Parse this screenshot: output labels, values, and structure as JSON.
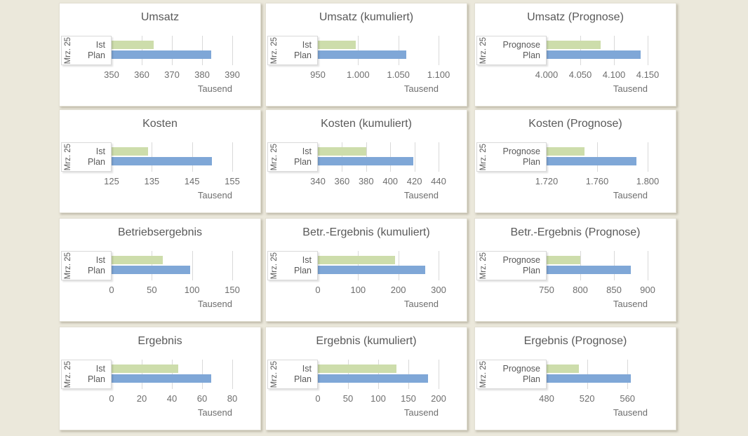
{
  "page": {
    "background_color": "#ebe8db",
    "card_background": "#ffffff"
  },
  "colors": {
    "actual_bar": "#cdddab",
    "plan_bar": "#7fa7d7",
    "title_text": "#595959",
    "axis_text": "#6e6e6e",
    "gridline": "#d9d9d9"
  },
  "chart_data": [
    {
      "type": "bar",
      "orientation": "horizontal",
      "title": "Umsatz",
      "period": "Mrz. 25",
      "categories": [
        "Ist",
        "Plan"
      ],
      "values": [
        364,
        383
      ],
      "unit": "Tausend",
      "legend": "none",
      "grid": true,
      "axis": {
        "min": 350,
        "max": 390,
        "ticks": [
          350,
          360,
          370,
          380,
          390
        ],
        "tick_labels": [
          "350",
          "360",
          "370",
          "380",
          "390"
        ]
      }
    },
    {
      "type": "bar",
      "orientation": "horizontal",
      "title": "Umsatz (kumuliert)",
      "period": "Mrz. 25",
      "categories": [
        "Ist",
        "Plan"
      ],
      "values": [
        997,
        1060
      ],
      "unit": "Tausend",
      "legend": "none",
      "grid": true,
      "axis": {
        "min": 950,
        "max": 1100,
        "ticks": [
          950,
          1000,
          1050,
          1100
        ],
        "tick_labels": [
          "950",
          "1.000",
          "1.050",
          "1.100"
        ]
      }
    },
    {
      "type": "bar",
      "orientation": "horizontal",
      "title": "Umsatz (Prognose)",
      "period": "Mrz. 25",
      "categories": [
        "Prognose",
        "Plan"
      ],
      "values": [
        4080,
        4140
      ],
      "unit": "Tausend",
      "legend": "none",
      "grid": true,
      "axis": {
        "min": 4000,
        "max": 4150,
        "ticks": [
          4000,
          4050,
          4100,
          4150
        ],
        "tick_labels": [
          "4.000",
          "4.050",
          "4.100",
          "4.150"
        ]
      }
    },
    {
      "type": "bar",
      "orientation": "horizontal",
      "title": "Kosten",
      "period": "Mrz. 25",
      "categories": [
        "Ist",
        "Plan"
      ],
      "values": [
        134,
        150
      ],
      "unit": "Tausend",
      "legend": "none",
      "grid": true,
      "axis": {
        "min": 125,
        "max": 155,
        "ticks": [
          125,
          135,
          145,
          155
        ],
        "tick_labels": [
          "125",
          "135",
          "145",
          "155"
        ]
      }
    },
    {
      "type": "bar",
      "orientation": "horizontal",
      "title": "Kosten (kumuliert)",
      "period": "Mrz. 25",
      "categories": [
        "Ist",
        "Plan"
      ],
      "values": [
        380,
        419
      ],
      "unit": "Tausend",
      "legend": "none",
      "grid": true,
      "axis": {
        "min": 340,
        "max": 440,
        "ticks": [
          340,
          360,
          380,
          400,
          420,
          440
        ],
        "tick_labels": [
          "340",
          "360",
          "380",
          "400",
          "420",
          "440"
        ]
      }
    },
    {
      "type": "bar",
      "orientation": "horizontal",
      "title": "Kosten (Prognose)",
      "period": "Mrz. 25",
      "categories": [
        "Prognose",
        "Plan"
      ],
      "values": [
        1750,
        1791
      ],
      "unit": "Tausend",
      "legend": "none",
      "grid": true,
      "axis": {
        "min": 1720,
        "max": 1800,
        "ticks": [
          1720,
          1760,
          1800
        ],
        "tick_labels": [
          "1.720",
          "1.760",
          "1.800"
        ]
      }
    },
    {
      "type": "bar",
      "orientation": "horizontal",
      "title": "Betriebsergebnis",
      "period": "Mrz. 25",
      "categories": [
        "Ist",
        "Plan"
      ],
      "values": [
        64,
        98
      ],
      "unit": "Tausend",
      "legend": "none",
      "grid": true,
      "axis": {
        "min": 0,
        "max": 150,
        "ticks": [
          0,
          50,
          100,
          150
        ],
        "tick_labels": [
          "0",
          "50",
          "100",
          "150"
        ]
      }
    },
    {
      "type": "bar",
      "orientation": "horizontal",
      "title": "Betr.-Ergebnis (kumuliert)",
      "period": "Mrz. 25",
      "categories": [
        "Ist",
        "Plan"
      ],
      "values": [
        191,
        267
      ],
      "unit": "Tausend",
      "legend": "none",
      "grid": true,
      "axis": {
        "min": 0,
        "max": 300,
        "ticks": [
          0,
          100,
          200,
          300
        ],
        "tick_labels": [
          "0",
          "100",
          "200",
          "300"
        ]
      }
    },
    {
      "type": "bar",
      "orientation": "horizontal",
      "title": "Betr.-Ergebnis (Prognose)",
      "period": "Mrz. 25",
      "categories": [
        "Prognose",
        "Plan"
      ],
      "values": [
        800,
        875
      ],
      "unit": "Tausend",
      "legend": "none",
      "grid": true,
      "axis": {
        "min": 750,
        "max": 900,
        "ticks": [
          750,
          800,
          850,
          900
        ],
        "tick_labels": [
          "750",
          "800",
          "850",
          "900"
        ]
      }
    },
    {
      "type": "bar",
      "orientation": "horizontal",
      "title": "Ergebnis",
      "period": "Mrz. 25",
      "categories": [
        "Ist",
        "Plan"
      ],
      "values": [
        44,
        66
      ],
      "unit": "Tausend",
      "legend": "none",
      "grid": true,
      "axis": {
        "min": 0,
        "max": 80,
        "ticks": [
          0,
          20,
          40,
          60,
          80
        ],
        "tick_labels": [
          "0",
          "20",
          "40",
          "60",
          "80"
        ]
      }
    },
    {
      "type": "bar",
      "orientation": "horizontal",
      "title": "Ergebnis (kumuliert)",
      "period": "Mrz. 25",
      "categories": [
        "Ist",
        "Plan"
      ],
      "values": [
        130,
        182
      ],
      "unit": "Tausend",
      "legend": "none",
      "grid": true,
      "axis": {
        "min": 0,
        "max": 200,
        "ticks": [
          0,
          50,
          100,
          150,
          200
        ],
        "tick_labels": [
          "0",
          "50",
          "100",
          "150",
          "200"
        ]
      }
    },
    {
      "type": "bar",
      "orientation": "horizontal",
      "title": "Ergebnis (Prognose)",
      "period": "Mrz. 25",
      "categories": [
        "Prognose",
        "Plan"
      ],
      "values": [
        512,
        563
      ],
      "unit": "Tausend",
      "legend": "none",
      "grid": true,
      "axis": {
        "min": 480,
        "max": 580,
        "ticks": [
          480,
          520,
          560
        ],
        "tick_labels": [
          "480",
          "520",
          "560"
        ]
      }
    }
  ]
}
